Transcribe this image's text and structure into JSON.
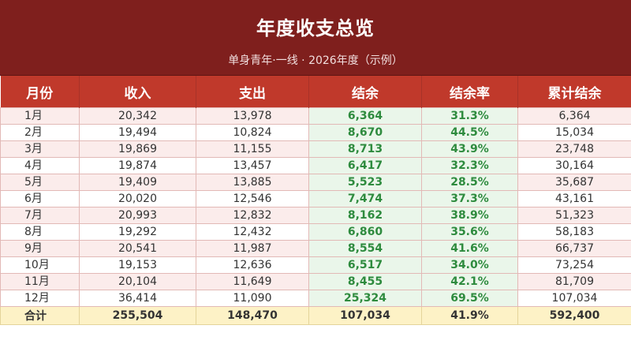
{
  "title": "年度收支总览",
  "subtitle": "单身青年·一线 · 2026年度（示例）",
  "columns": [
    "月份",
    "收入",
    "支出",
    "结余",
    "结余率",
    "累计结余"
  ],
  "rows": [
    [
      "1月",
      "20,342",
      "13,978",
      "6,364",
      "31.3%",
      "6,364"
    ],
    [
      "2月",
      "19,494",
      "10,824",
      "8,670",
      "44.5%",
      "15,034"
    ],
    [
      "3月",
      "19,869",
      "11,155",
      "8,713",
      "43.9%",
      "23,748"
    ],
    [
      "4月",
      "19,874",
      "13,457",
      "6,417",
      "32.3%",
      "30,164"
    ],
    [
      "5月",
      "19,409",
      "13,885",
      "5,523",
      "28.5%",
      "35,687"
    ],
    [
      "6月",
      "20,020",
      "12,546",
      "7,474",
      "37.3%",
      "43,161"
    ],
    [
      "7月",
      "20,993",
      "12,832",
      "8,162",
      "38.9%",
      "51,323"
    ],
    [
      "8月",
      "19,292",
      "12,432",
      "6,860",
      "35.6%",
      "58,183"
    ],
    [
      "9月",
      "20,541",
      "11,987",
      "8,554",
      "41.6%",
      "66,737"
    ],
    [
      "10月",
      "19,153",
      "12,636",
      "6,517",
      "34.0%",
      "73,254"
    ],
    [
      "11月",
      "20,104",
      "11,649",
      "8,455",
      "42.1%",
      "81,709"
    ],
    [
      "12月",
      "36,414",
      "11,090",
      "25,324",
      "69.5%",
      "107,034"
    ]
  ],
  "total": [
    "合计",
    "255,504",
    "148,470",
    "107,034",
    "41.9%",
    "592,400"
  ],
  "colors": {
    "title_band": "#7f1f1d",
    "header": "#c0392b",
    "positive": "#2e8b3e",
    "total_row": "#fdf2c6"
  }
}
